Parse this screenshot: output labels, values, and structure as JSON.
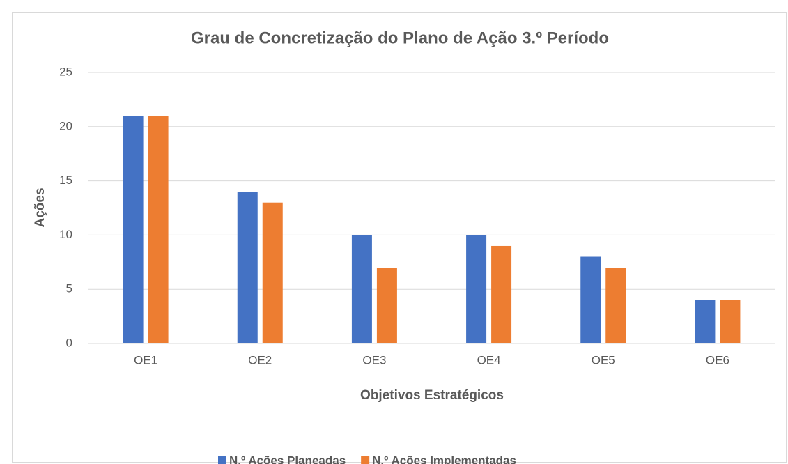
{
  "chart_data": {
    "type": "bar",
    "title": "Grau de Concretização do Plano de Ação 3.º Período",
    "x_label": "Objetivos Estratégicos",
    "y_label": "Ações",
    "categories": [
      "OE1",
      "OE2",
      "OE3",
      "OE4",
      "OE5",
      "OE6"
    ],
    "series": [
      {
        "name": "N.º Ações Planeadas",
        "color": "#4472c4",
        "values": [
          21,
          14,
          10,
          10,
          8,
          4
        ]
      },
      {
        "name": "N.º Ações Implementadas",
        "color": "#ed7d31",
        "values": [
          21,
          13,
          7,
          9,
          7,
          4
        ]
      }
    ],
    "ylim": [
      0,
      25
    ],
    "yticks": [
      0,
      5,
      10,
      15,
      20,
      25
    ],
    "grid": true,
    "legend": "bottom"
  }
}
